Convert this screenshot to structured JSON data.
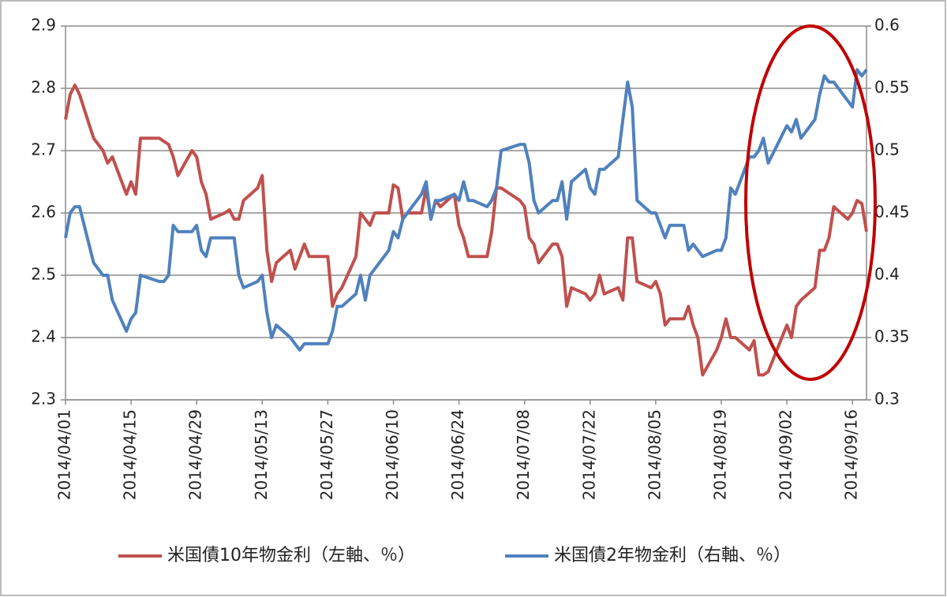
{
  "chart_data": {
    "type": "line",
    "x": [
      "2014/04/01",
      "2014/04/02",
      "2014/04/03",
      "2014/04/04",
      "2014/04/07",
      "2014/04/08",
      "2014/04/09",
      "2014/04/10",
      "2014/04/11",
      "2014/04/14",
      "2014/04/15",
      "2014/04/16",
      "2014/04/17",
      "2014/04/21",
      "2014/04/22",
      "2014/04/23",
      "2014/04/24",
      "2014/04/25",
      "2014/04/28",
      "2014/04/29",
      "2014/04/30",
      "2014/05/01",
      "2014/05/02",
      "2014/05/05",
      "2014/05/06",
      "2014/05/07",
      "2014/05/08",
      "2014/05/09",
      "2014/05/12",
      "2014/05/13",
      "2014/05/14",
      "2014/05/15",
      "2014/05/16",
      "2014/05/19",
      "2014/05/20",
      "2014/05/21",
      "2014/05/22",
      "2014/05/23",
      "2014/05/27",
      "2014/05/28",
      "2014/05/29",
      "2014/05/30",
      "2014/06/02",
      "2014/06/03",
      "2014/06/04",
      "2014/06/05",
      "2014/06/06",
      "2014/06/09",
      "2014/06/10",
      "2014/06/11",
      "2014/06/12",
      "2014/06/13",
      "2014/06/16",
      "2014/06/17",
      "2014/06/18",
      "2014/06/19",
      "2014/06/20",
      "2014/06/23",
      "2014/06/24",
      "2014/06/25",
      "2014/06/26",
      "2014/06/27",
      "2014/06/30",
      "2014/07/01",
      "2014/07/02",
      "2014/07/03",
      "2014/07/07",
      "2014/07/08",
      "2014/07/09",
      "2014/07/10",
      "2014/07/11",
      "2014/07/14",
      "2014/07/15",
      "2014/07/16",
      "2014/07/17",
      "2014/07/18",
      "2014/07/21",
      "2014/07/22",
      "2014/07/23",
      "2014/07/24",
      "2014/07/25",
      "2014/07/28",
      "2014/07/29",
      "2014/07/30",
      "2014/07/31",
      "2014/08/01",
      "2014/08/04",
      "2014/08/05",
      "2014/08/06",
      "2014/08/07",
      "2014/08/08",
      "2014/08/11",
      "2014/08/12",
      "2014/08/13",
      "2014/08/14",
      "2014/08/15",
      "2014/08/18",
      "2014/08/19",
      "2014/08/20",
      "2014/08/21",
      "2014/08/22",
      "2014/08/25",
      "2014/08/26",
      "2014/08/27",
      "2014/08/28",
      "2014/08/29",
      "2014/09/02",
      "2014/09/03",
      "2014/09/04",
      "2014/09/05",
      "2014/09/08",
      "2014/09/09",
      "2014/09/10",
      "2014/09/11",
      "2014/09/12",
      "2014/09/15",
      "2014/09/16",
      "2014/09/17",
      "2014/09/18",
      "2014/09/19"
    ],
    "series": [
      {
        "name": "米国債10年物金利（左軸、％）",
        "color": "#c0504d",
        "axis": "y",
        "values": [
          2.75,
          2.79,
          2.805,
          2.79,
          2.72,
          2.71,
          2.7,
          2.68,
          2.69,
          2.63,
          2.65,
          2.63,
          2.72,
          2.72,
          2.715,
          2.71,
          2.69,
          2.66,
          2.7,
          2.69,
          2.65,
          2.63,
          2.59,
          2.6,
          2.605,
          2.59,
          2.59,
          2.62,
          2.64,
          2.66,
          2.54,
          2.49,
          2.52,
          2.54,
          2.51,
          2.53,
          2.55,
          2.53,
          2.53,
          2.45,
          2.47,
          2.48,
          2.53,
          2.6,
          2.59,
          2.58,
          2.6,
          2.6,
          2.645,
          2.64,
          2.59,
          2.6,
          2.6,
          2.64,
          2.59,
          2.62,
          2.61,
          2.63,
          2.58,
          2.56,
          2.53,
          2.53,
          2.53,
          2.57,
          2.64,
          2.64,
          2.62,
          2.61,
          2.56,
          2.55,
          2.52,
          2.55,
          2.55,
          2.53,
          2.45,
          2.48,
          2.47,
          2.46,
          2.47,
          2.5,
          2.47,
          2.48,
          2.46,
          2.56,
          2.56,
          2.49,
          2.48,
          2.49,
          2.47,
          2.42,
          2.43,
          2.43,
          2.45,
          2.42,
          2.4,
          2.34,
          2.38,
          2.4,
          2.43,
          2.4,
          2.4,
          2.38,
          2.395,
          2.34,
          2.34,
          2.345,
          2.42,
          2.4,
          2.45,
          2.46,
          2.48,
          2.54,
          2.54,
          2.56,
          2.61,
          2.59,
          2.6,
          2.62,
          2.615,
          2.57
        ]
      },
      {
        "name": "米国債2年物金利（右軸、％）",
        "color": "#4f81bd",
        "axis": "y2",
        "values": [
          0.43,
          0.45,
          0.455,
          0.455,
          0.41,
          0.405,
          0.4,
          0.4,
          0.38,
          0.355,
          0.365,
          0.37,
          0.4,
          0.395,
          0.395,
          0.4,
          0.44,
          0.435,
          0.435,
          0.44,
          0.42,
          0.415,
          0.43,
          0.43,
          0.43,
          0.43,
          0.4,
          0.39,
          0.395,
          0.4,
          0.37,
          0.35,
          0.36,
          0.35,
          0.345,
          0.34,
          0.345,
          0.345,
          0.345,
          0.355,
          0.375,
          0.375,
          0.385,
          0.4,
          0.38,
          0.4,
          0.405,
          0.42,
          0.435,
          0.43,
          0.445,
          0.45,
          0.465,
          0.475,
          0.445,
          0.46,
          0.46,
          0.465,
          0.46,
          0.475,
          0.46,
          0.46,
          0.455,
          0.46,
          0.47,
          0.5,
          0.505,
          0.505,
          0.49,
          0.46,
          0.45,
          0.46,
          0.46,
          0.475,
          0.445,
          0.475,
          0.485,
          0.47,
          0.465,
          0.485,
          0.485,
          0.495,
          0.525,
          0.555,
          0.535,
          0.46,
          0.45,
          0.45,
          0.44,
          0.43,
          0.44,
          0.44,
          0.42,
          0.425,
          0.42,
          0.415,
          0.42,
          0.42,
          0.43,
          0.47,
          0.465,
          0.495,
          0.495,
          0.5,
          0.51,
          0.49,
          0.52,
          0.515,
          0.525,
          0.51,
          0.525,
          0.545,
          0.56,
          0.555,
          0.555,
          0.54,
          0.535,
          0.565,
          0.56,
          0.565
        ]
      }
    ],
    "xlim": [
      "2014/04/01",
      "2014/09/19"
    ],
    "xticks": [
      "2014/04/01",
      "2014/04/15",
      "2014/04/29",
      "2014/05/13",
      "2014/05/27",
      "2014/06/10",
      "2014/06/24",
      "2014/07/08",
      "2014/07/22",
      "2014/08/05",
      "2014/08/19",
      "2014/09/02",
      "2014/09/16"
    ],
    "ylim": [
      2.3,
      2.9
    ],
    "yticks": [
      2.3,
      2.4,
      2.5,
      2.6,
      2.7,
      2.8,
      2.9
    ],
    "y2lim": [
      0.3,
      0.6
    ],
    "y2ticks": [
      0.3,
      0.35,
      0.4,
      0.45,
      0.5,
      0.55,
      0.6
    ],
    "grid": true,
    "legend": "bottom"
  }
}
